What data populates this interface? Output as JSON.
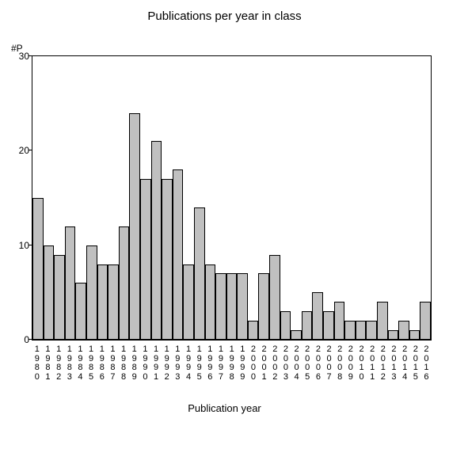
{
  "chart": {
    "type": "bar",
    "title": "Publications per year in class",
    "title_fontsize": 15,
    "yaxis_label": "#P",
    "xaxis_title": "Publication year",
    "xaxis_title_fontsize": 13,
    "ylim": [
      0,
      30
    ],
    "ytick_step": 10,
    "yticks": [
      0,
      10,
      20,
      30
    ],
    "background_color": "#ffffff",
    "bar_color": "#c0c0c0",
    "bar_border_color": "#000000",
    "axis_color": "#000000",
    "tick_fontsize": 12,
    "xlabel_fontsize": 11,
    "categories": [
      "1980",
      "1981",
      "1982",
      "1983",
      "1984",
      "1985",
      "1986",
      "1987",
      "1988",
      "1989",
      "1990",
      "1991",
      "1992",
      "1993",
      "1994",
      "1995",
      "1996",
      "1997",
      "1998",
      "1999",
      "2000",
      "2001",
      "2002",
      "2003",
      "2004",
      "2005",
      "2006",
      "2007",
      "2008",
      "2009",
      "2010",
      "2011",
      "2012",
      "2013",
      "2014",
      "2015",
      "2016"
    ],
    "values": [
      15,
      10,
      9,
      12,
      6,
      10,
      8,
      8,
      12,
      24,
      17,
      21,
      17,
      18,
      8,
      14,
      8,
      7,
      7,
      7,
      2,
      7,
      9,
      3,
      1,
      3,
      5,
      3,
      4,
      2,
      2,
      2,
      4,
      1,
      2,
      1,
      4
    ]
  }
}
